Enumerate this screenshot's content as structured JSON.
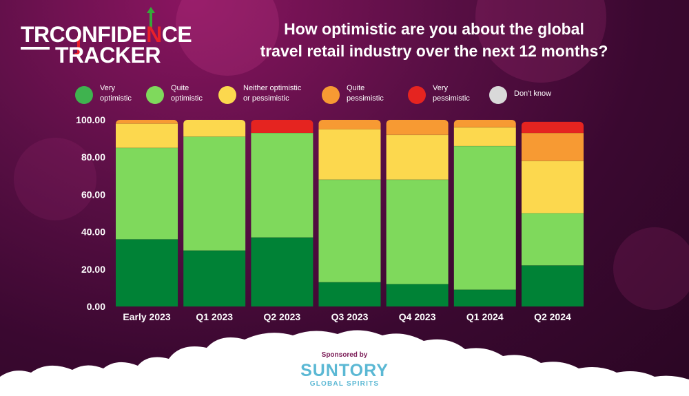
{
  "logo": {
    "prefix": "TR",
    "word1": [
      "CONFIDE",
      "N",
      "CE"
    ],
    "word2": "TRACKER"
  },
  "title": {
    "line1": "How optimistic are you about the global",
    "line2": "travel retail industry over the next 12 months?"
  },
  "legend": [
    {
      "label": "Very\noptimistic",
      "color": "#3fb34f"
    },
    {
      "label": "Quite\noptimistic",
      "color": "#7fd95c"
    },
    {
      "label": "Neither optimistic\nor pessimistic",
      "color": "#fcd84e"
    },
    {
      "label": "Quite\npessimistic",
      "color": "#f79a33"
    },
    {
      "label": "Very\npessimistic",
      "color": "#e52420"
    },
    {
      "label": "Don't know",
      "color": "#d9d9d9"
    }
  ],
  "chart_data": {
    "type": "bar",
    "stacked": true,
    "title": "How optimistic are you about the global travel retail industry over the next 12 months?",
    "categories": [
      "Early 2023",
      "Q1 2023",
      "Q2 2023",
      "Q3 2023",
      "Q4 2023",
      "Q1 2024",
      "Q2 2024"
    ],
    "ylim": [
      0,
      100
    ],
    "yticks": [
      "0.00",
      "20.00",
      "40.00",
      "60.00",
      "80.00",
      "100.00"
    ],
    "ytick_values": [
      0,
      20,
      40,
      60,
      80,
      100
    ],
    "series": [
      {
        "name": "Very optimistic",
        "color": "#008236",
        "values": [
          36,
          30,
          37,
          13,
          12,
          9,
          22
        ]
      },
      {
        "name": "Quite optimistic",
        "color": "#7fd95c",
        "values": [
          49,
          61,
          56,
          55,
          56,
          77,
          28
        ]
      },
      {
        "name": "Neither optimistic or pessimistic",
        "color": "#fcd84e",
        "values": [
          13,
          9,
          0,
          27,
          24,
          10,
          28
        ]
      },
      {
        "name": "Quite pessimistic",
        "color": "#f79a33",
        "values": [
          2,
          0,
          0,
          5,
          8,
          4,
          15
        ]
      },
      {
        "name": "Very pessimistic",
        "color": "#e52420",
        "values": [
          0,
          0,
          7,
          0,
          0,
          0,
          6
        ]
      },
      {
        "name": "Don't know",
        "color": "#d9d9d9",
        "values": [
          0,
          0,
          0,
          0,
          0,
          0,
          0
        ]
      }
    ]
  },
  "sponsor": {
    "label": "Sponsored by",
    "name": "SUNTORY",
    "subtitle": "GLOBAL SPIRITS"
  }
}
